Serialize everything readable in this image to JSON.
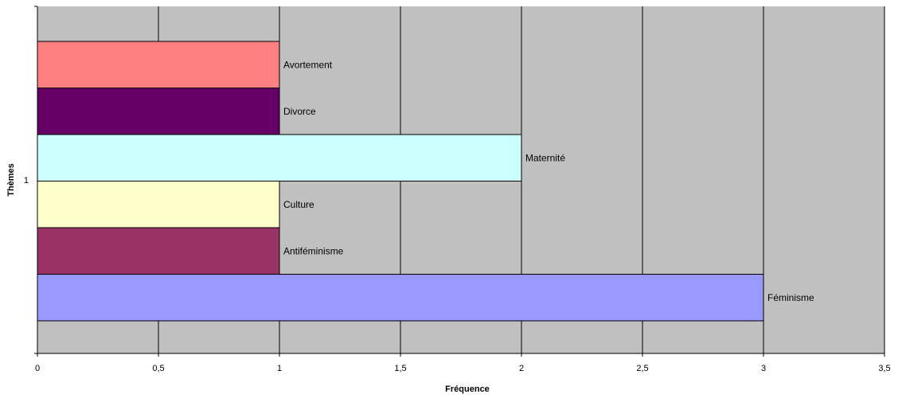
{
  "chart_data": {
    "type": "bar",
    "orientation": "horizontal",
    "xlabel": "Fréquence",
    "ylabel": "Thèmes",
    "category_tick": "1",
    "xlim": [
      0,
      3.5
    ],
    "xticks": [
      0,
      0.5,
      1,
      1.5,
      2,
      2.5,
      3,
      3.5
    ],
    "xtick_labels": [
      "0",
      "0,5",
      "1",
      "1,5",
      "2",
      "2,5",
      "3",
      "3,5"
    ],
    "grid": "vertical",
    "plot_background": "#c0c0c0",
    "series": [
      {
        "name": "Avortement",
        "value": 1,
        "color": "#ff8080"
      },
      {
        "name": "Divorce",
        "value": 1,
        "color": "#660066"
      },
      {
        "name": "Maternité",
        "value": 2,
        "color": "#ccffff"
      },
      {
        "name": "Culture",
        "value": 1,
        "color": "#ffffcc"
      },
      {
        "name": "Antiféminisme",
        "value": 1,
        "color": "#993366"
      },
      {
        "name": "Féminisme",
        "value": 3,
        "color": "#9999ff"
      }
    ]
  }
}
